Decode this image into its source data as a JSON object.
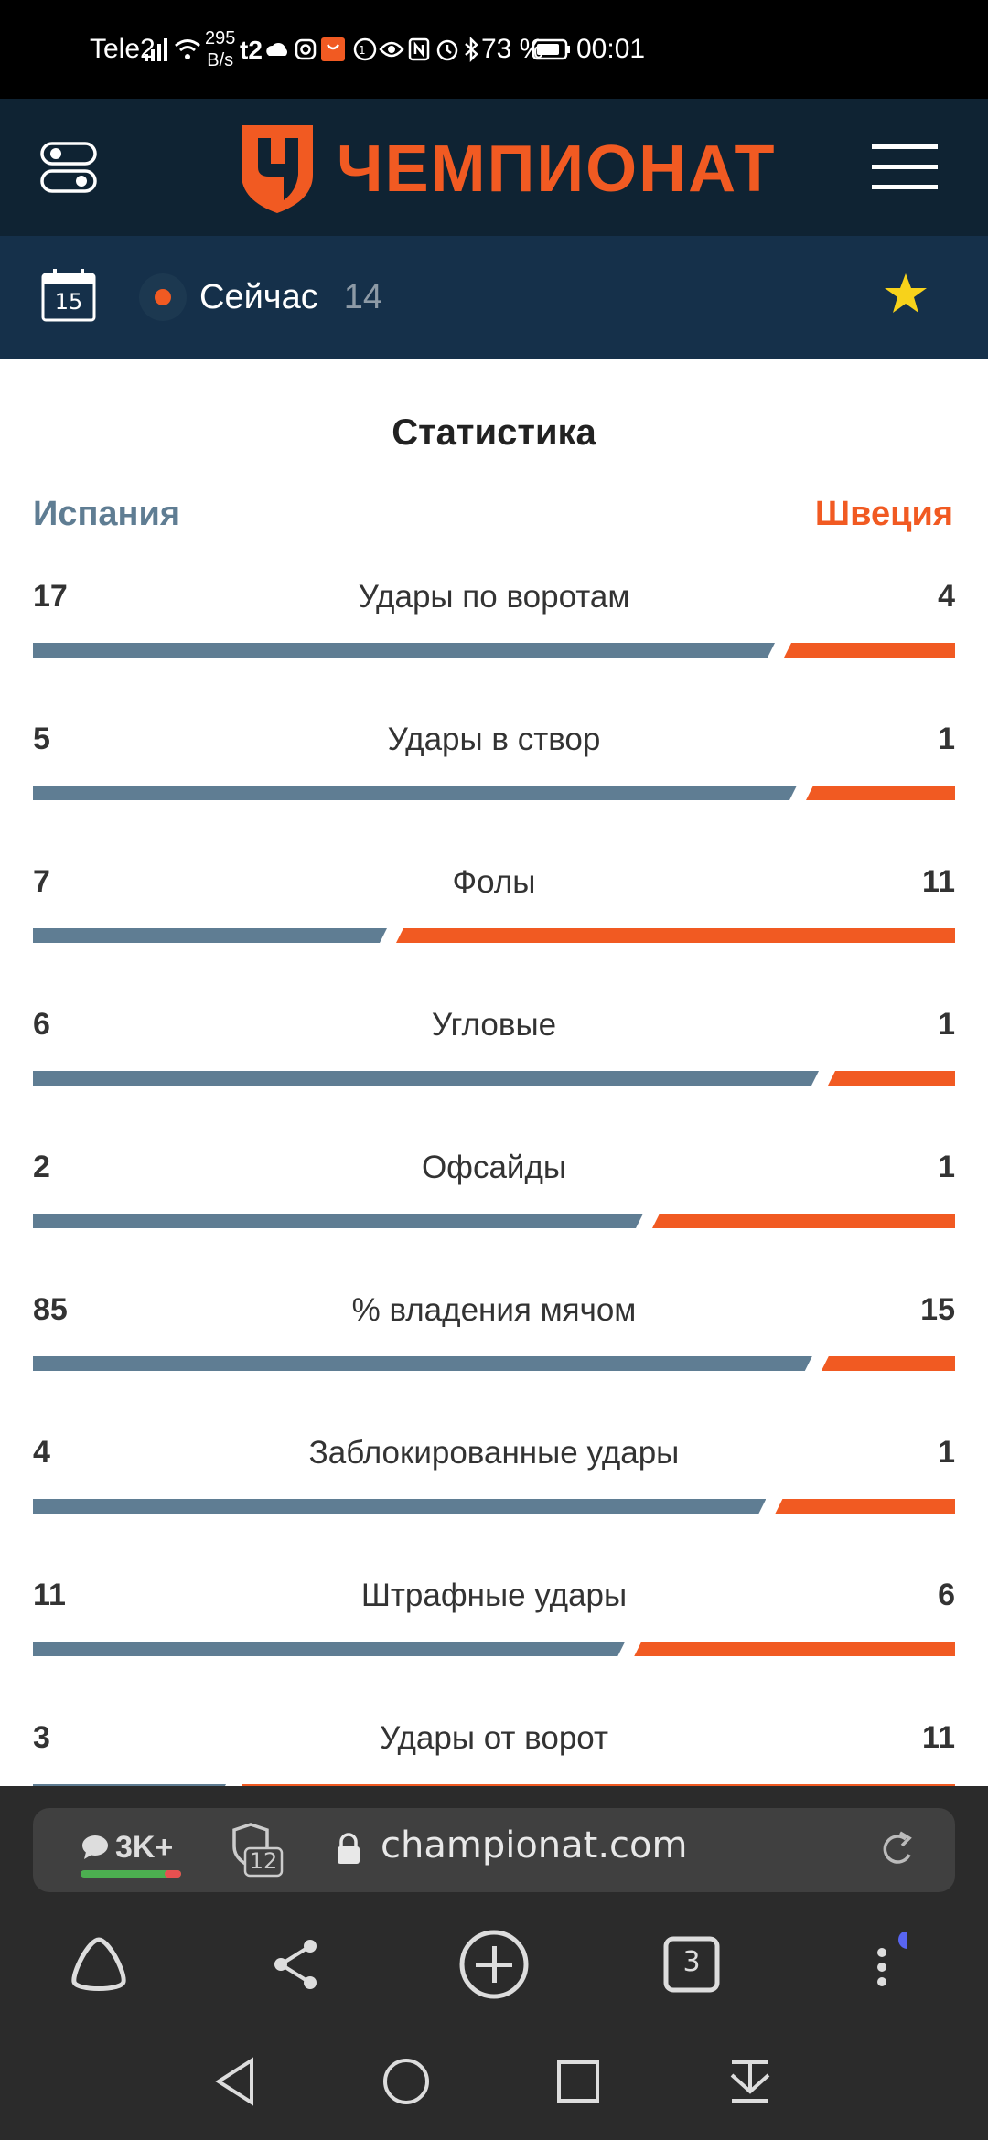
{
  "status_bar": {
    "carrier": "Tele2",
    "net_speed": "295",
    "net_speed_unit": "B/s",
    "battery": "73 %",
    "time": "00:01"
  },
  "header": {
    "brand": "ЧЕМПИОНАТ",
    "brand_color": "#f15a22"
  },
  "subheader": {
    "date_day": "15",
    "now_label": "Сейчас",
    "now_count": "14"
  },
  "stats": {
    "title": "Статистика",
    "home_team": "Испания",
    "away_team": "Швеция",
    "home_color": "#5f7d93",
    "away_color": "#f15a22",
    "rows": [
      {
        "label": "Удары по воротам",
        "home": "17",
        "away": "4"
      },
      {
        "label": "Удары в створ",
        "home": "5",
        "away": "1"
      },
      {
        "label": "Фолы",
        "home": "7",
        "away": "11"
      },
      {
        "label": "Угловые",
        "home": "6",
        "away": "1"
      },
      {
        "label": "Офсайды",
        "home": "2",
        "away": "1"
      },
      {
        "label": "% владения мячом",
        "home": "85",
        "away": "15"
      },
      {
        "label": "Заблокированные удары",
        "home": "4",
        "away": "1"
      },
      {
        "label": "Штрафные удары",
        "home": "11",
        "away": "6"
      },
      {
        "label": "Удары от ворот",
        "home": "3",
        "away": "11"
      }
    ]
  },
  "browser": {
    "comments_count": "3K+",
    "trackers_count": "12",
    "url": "championat.com",
    "tabs_count": "3"
  }
}
